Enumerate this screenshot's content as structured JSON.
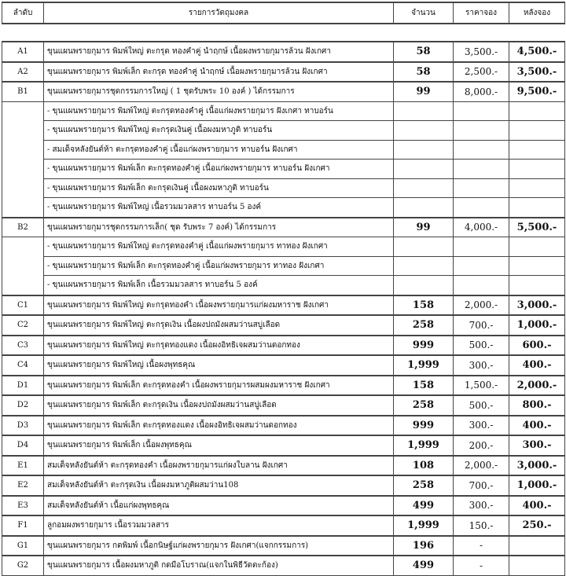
{
  "header": {
    "code": "ลำดับ",
    "item": "รายการวัตถุมงคล",
    "qty": "จำนวน",
    "price": "ราคาจอง",
    "after": "หลังจอง"
  },
  "rows": [
    {
      "code": "A1",
      "item": "ขุนแผนพรายกุมาร พิมพ์ใหญ่ ตะกรุด ทองคำคู่ นำฤกษ์ เนื้อผงพรายกุมารล้วน ฝังเกศา",
      "qty": "58",
      "price": "3,500.-",
      "after": "4,500.-"
    },
    {
      "code": "A2",
      "item": "ขุนแผนพรายกุมาร พิมพ์เล็ก ตะกรุด ทองคำคู่ นำฤกษ์ เนื้อผงพรายกุมารล้วน ฝังเกศา",
      "qty": "58",
      "price": "2,500.-",
      "after": "3,500.-"
    },
    {
      "code": "B1",
      "item": "ขุนแผนพรายกุมารชุดกรรมการใหญ่ ( 1 ชุดรับพระ 10 องค์ ) ได้กรรมการ",
      "qty": "99",
      "price": "8,000.-",
      "after": "9,500.-"
    },
    {
      "code": "",
      "item": "- ขุนแผนพรายกุมาร พิมพ์ใหญ่ ตะกรุดทองคำคู่ เนื้อแก่ผงพรายกุมาร ฝังเกศา ทาบอร์น",
      "qty": "",
      "price": "",
      "after": ""
    },
    {
      "code": "",
      "item": "- ขุนแผนพรายกุมาร พิมพ์ใหญ่ ตะกรุดเงินคู่ เนื้อผงมหาภูติ ทาบอร์น",
      "qty": "",
      "price": "",
      "after": ""
    },
    {
      "code": "",
      "item": "- สมเด็จหลังยันต์ห้า ตะกรุดทองคำคู่ เนื้อแก่ผงพรายกุมาร ทาบอร์น ฝังเกศา",
      "qty": "",
      "price": "",
      "after": ""
    },
    {
      "code": "",
      "item": "- ขุนแผนพรายกุมาร พิมพ์เล็ก ตะกรุดทองคำคู่ เนื้อแก่ผงพรายกุมาร ทาบอร์น ฝังเกศา",
      "qty": "",
      "price": "",
      "after": ""
    },
    {
      "code": "",
      "item": "- ขุนแผนพรายกุมาร พิมพ์เล็ก ตะกรุดเงินคู่ เนื้อผงมหาภูติ ทาบอร์น",
      "qty": "",
      "price": "",
      "after": ""
    },
    {
      "code": "",
      "item": "- ขุนแผนพรายกุมาร พิมพ์ใหญ่ เนื้อรวมมวลสาร ทาบอร์น 5 องค์",
      "qty": "",
      "price": "",
      "after": ""
    },
    {
      "code": "B2",
      "item": "ขุนแผนพรายกุมารชุดกรรมการเล็ก( ชุด รับพระ 7 องค์) ได้กรรมการ",
      "qty": "99",
      "price": "4,000.-",
      "after": "5,500.-"
    },
    {
      "code": "",
      "item": "- ขุนแผนพรายกุมาร พิมพ์ใหญ่ ตะกรุดทองคำคู่ เนื้อแก่ผงพรายกุมาร ทาทอง ฝังเกศา",
      "qty": "",
      "price": "",
      "after": ""
    },
    {
      "code": "",
      "item": "- ขุนแผนพรายกุมาร พิมพ์เล็ก ตะกรุดทองคำคู่ เนื้อแก่ผงพรายกุมาร ทาทอง ฝังเกศา",
      "qty": "",
      "price": "",
      "after": ""
    },
    {
      "code": "",
      "item": "- ขุนแผนพรายกุมาร พิมพ์เล็ก เนื้อรวมมวลสาร ทาบอร์น 5 องค์",
      "qty": "",
      "price": "",
      "after": ""
    },
    {
      "code": "C1",
      "item": "ขุนแผนพรายกุมาร พิมพ์ใหญ่ ตะกรุดทองคำ เนื้อผงพรายกุมารแก่ผงมหาราช ฝังเกศา",
      "qty": "158",
      "price": "2,000.-",
      "after": "3,000.-"
    },
    {
      "code": "C2",
      "item": "ขุนแผนพรายกุมาร พิมพ์ใหญ่ ตะกรุดเงิน เนื้อผงปถมังผสมว่านสบู่เลือด",
      "qty": "258",
      "price": "700.-",
      "after": "1,000.-"
    },
    {
      "code": "C3",
      "item": "ขุนแผนพรายกุมาร พิมพ์ใหญ่ ตะกรุดทองแดง เนื้อผงอิทธิเจผสมว่านดอกทอง",
      "qty": "999",
      "price": "500.-",
      "after": "600.-"
    },
    {
      "code": "C4",
      "item": "ขุนแผนพรายกุมาร พิมพ์ใหญ่ เนื้อผงพุทธคุณ",
      "qty": "1,999",
      "price": "300.-",
      "after": "400.-"
    },
    {
      "code": "D1",
      "item": "ขุนแผนพรายกุมาร พิมพ์เล็ก ตะกรุดทองคำ เนื้อผงพรายกุมารผสมผงมหาราช ฝังเกศา",
      "qty": "158",
      "price": "1,500.-",
      "after": "2,000.-"
    },
    {
      "code": "D2",
      "item": "ขุนแผนพรายกุมาร พิมพ์เล็ก ตะกรุดเงิน เนื้อผงปถมังผสมว่านสบู่เลือด",
      "qty": "258",
      "price": "500.-",
      "after": "800.-"
    },
    {
      "code": "D3",
      "item": "ขุนแผนพรายกุมาร พิมพ์เล็ก ตะกรุดทองแดง เนื้อผงอิทธิเจผสมว่านดอกทอง",
      "qty": "999",
      "price": "300.-",
      "after": "400.-"
    },
    {
      "code": "D4",
      "item": "ขุนแผนพรายกุมาร พิมพ์เล็ก เนื้อผงพุทธคุณ",
      "qty": "1,999",
      "price": "200.-",
      "after": "300.-"
    },
    {
      "code": "E1",
      "item": "สมเด็จหลังยันต์ห้า ตะกรุดทองคำ เนื้อผงพรายกุมารแก่ผงใบลาน ฝังเกศา",
      "qty": "108",
      "price": "2,000.-",
      "after": "3,000.-"
    },
    {
      "code": "E2",
      "item": "สมเด็จหลังยันต์ห้า ตะกรุดเงิน เนื้อผงมหาภูติผสมว่าน108",
      "qty": "258",
      "price": "700.-",
      "after": "1,000.-"
    },
    {
      "code": "E3",
      "item": "สมเด็จหลังยันต์ห้า เนื้อแก่ผงพุทธคุณ",
      "qty": "499",
      "price": "300.-",
      "after": "400.-"
    },
    {
      "code": "F1",
      "item": "ลูกอมผงพรายกุมาร เนื้อรวมมวลสาร",
      "qty": "1,999",
      "price": "150.-",
      "after": "250.-"
    },
    {
      "code": "G1",
      "item": "ขุนแผนพรายกุมาร กดพิมพ์ เนื้อกนิษฐ์แก่ผงพรายกุมาร ฝังเกศา(แจกกรรมการ)",
      "qty": "196",
      "price": "-",
      "after": ""
    },
    {
      "code": "G2",
      "item": "ขุนแผนพรายกุมาร เนื้อผงมหาภูติ กดมือโบราณ(แจกในพิธีวัดตะก้อง)",
      "qty": "499",
      "price": "-",
      "after": ""
    }
  ]
}
